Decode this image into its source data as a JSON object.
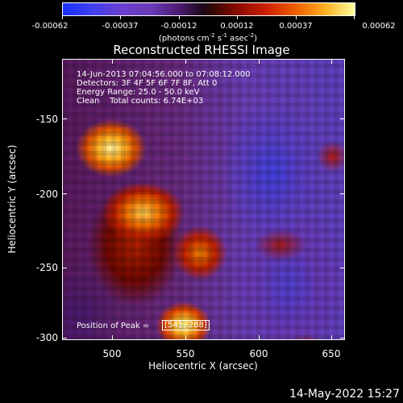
{
  "colorbar": {
    "tick_labels": [
      "-0.00062",
      "-0.00037",
      "-0.00012",
      "0.00012",
      "0.00037",
      "0.00062"
    ],
    "units_main": "(photons cm",
    "units_exp1": "-2",
    "units_mid1": " s",
    "units_exp2": "-1",
    "units_mid2": " asec",
    "units_exp3": "-2",
    "units_end": ")",
    "low_color": "#1830ff",
    "high_color": "#ffffa0"
  },
  "title": "Reconstructed RHESSI Image",
  "info": {
    "line1": "14-Jun-2013 07:04:56.000 to 07:08:12.000",
    "line2": "Detectors: 3F 4F 5F 6F 7F 8F, Att 0",
    "line3": "Energy Range: 25.0 - 50.0 keV",
    "line4": "Clean    Total counts: 6.74E+03"
  },
  "peak": {
    "label": "Position of Peak = ",
    "value": "[541,-288]"
  },
  "axes": {
    "xlabel": "Heliocentric X (arcsec)",
    "ylabel": "Heliocentric Y (arcsec)",
    "x_ticks": [
      "500",
      "550",
      "600",
      "650"
    ],
    "y_ticks": [
      "-150",
      "-200",
      "-250",
      "-300"
    ]
  },
  "datestamp": "14-May-2022 15:27",
  "chart_data": {
    "type": "heatmap",
    "title": "Reconstructed RHESSI Image",
    "xlabel": "Heliocentric X (arcsec)",
    "ylabel": "Heliocentric Y (arcsec)",
    "xlim": [
      465,
      660
    ],
    "ylim": [
      -302,
      -128
    ],
    "x_ticks": [
      500,
      550,
      600,
      650
    ],
    "y_ticks": [
      -150,
      -200,
      -250,
      -300
    ],
    "colorbar_range": [
      -0.00062,
      0.00062
    ],
    "colorbar_ticks": [
      -0.00062,
      -0.00037,
      -0.00012,
      0.00012,
      0.00037,
      0.00062
    ],
    "peak_position": [
      541,
      -288
    ]
  }
}
